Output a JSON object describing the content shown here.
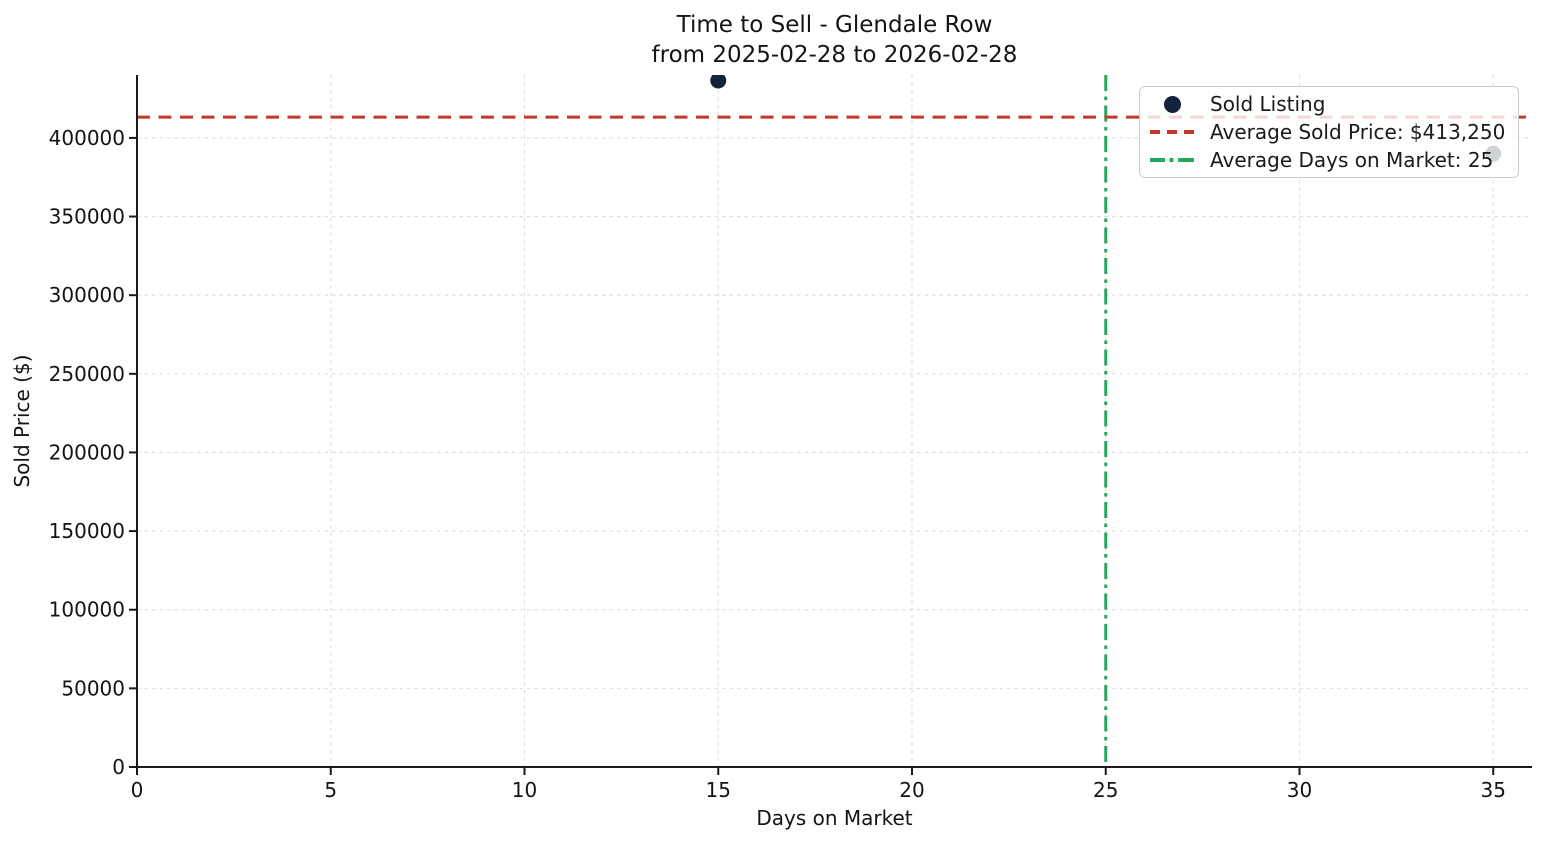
{
  "chart_data": {
    "type": "scatter",
    "title_line1": "Time to Sell - Glendale Row",
    "title_line2": "from 2025-02-28 to 2026-02-28",
    "xlabel": "Days on Market",
    "ylabel": "Sold Price ($)",
    "x_ticks": [
      0,
      5,
      10,
      15,
      20,
      25,
      30,
      35
    ],
    "y_ticks": [
      0,
      50000,
      100000,
      150000,
      200000,
      250000,
      300000,
      350000,
      400000
    ],
    "xlim": [
      0,
      36
    ],
    "ylim": [
      0,
      440000
    ],
    "grid": true,
    "points": [
      {
        "x": 15,
        "y": 436500
      },
      {
        "x": 35,
        "y": 390000
      }
    ],
    "avg_sold_price": 413250,
    "avg_days_on_market": 25,
    "legend_position": "upper right",
    "legend": [
      {
        "label": "Sold Listing",
        "marker": "dot",
        "color": "#14233c"
      },
      {
        "label": "Average Sold Price: $413,250",
        "marker": "dashed",
        "color": "#c0392b"
      },
      {
        "label": "Average Days on Market: 25",
        "marker": "dashdot",
        "color": "#28a55f"
      }
    ],
    "colors": {
      "point": "#14233c",
      "avg_price_line": "#c0392b",
      "avg_days_line": "#28a55f",
      "grid": "#dcdcdc",
      "axis": "#1a1a1a",
      "tick_text": "#141414"
    }
  }
}
